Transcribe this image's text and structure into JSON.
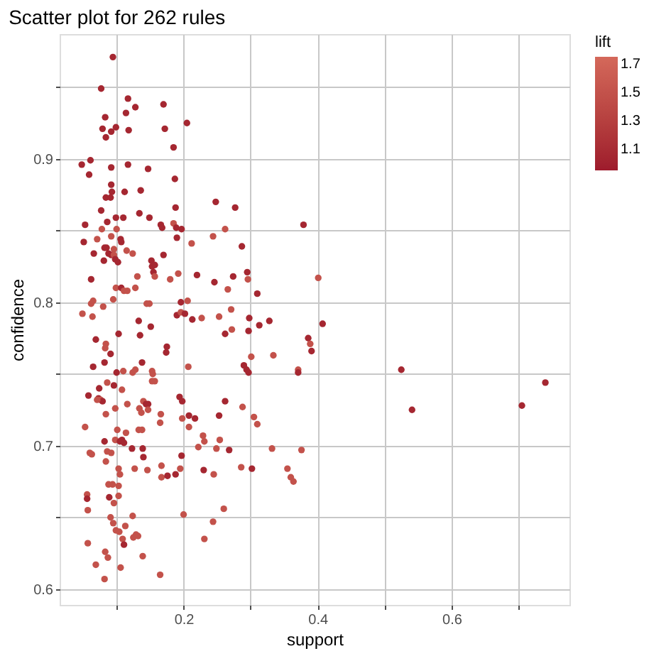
{
  "chart_data": {
    "type": "scatter",
    "title": "Scatter plot for 262 rules",
    "xlabel": "support",
    "ylabel": "confidence",
    "legend_title": "lift",
    "xlim": [
      0.015,
      0.776
    ],
    "ylim": [
      0.589,
      0.987
    ],
    "xticks": [
      {
        "value": 0.1,
        "label": null
      },
      0.2,
      {
        "value": 0.3,
        "label": null
      },
      0.4,
      {
        "value": 0.5,
        "label": null
      },
      0.6,
      {
        "value": 0.7,
        "label": null
      }
    ],
    "yticks": [
      0.6,
      {
        "value": 0.65,
        "label": null
      },
      0.7,
      {
        "value": 0.75,
        "label": null
      },
      0.8,
      {
        "value": 0.85,
        "label": null
      },
      0.9,
      {
        "value": 0.95,
        "label": null
      }
    ],
    "clim": [
      0.95,
      1.75
    ],
    "cticks": [
      1.1,
      1.3,
      1.5,
      1.7
    ],
    "grid": true,
    "marker": "circle",
    "x": [
      0.0945,
      0.077,
      0.117,
      0.128,
      0.114,
      0.083,
      0.079,
      0.092,
      0.099,
      0.084,
      0.118,
      0.17,
      0.172,
      0.205,
      0.185,
      0.048,
      0.061,
      0.059,
      0.092,
      0.117,
      0.147,
      0.187,
      0.092,
      0.093,
      0.112,
      0.084,
      0.091,
      0.136,
      0.077,
      0.134,
      0.188,
      0.248,
      0.277,
      0.086,
      0.099,
      0.11,
      0.149,
      0.053,
      0.078,
      0.1,
      0.166,
      0.168,
      0.185,
      0.189,
      0.197,
      0.379,
      0.071,
      0.092,
      0.106,
      0.107,
      0.19,
      0.212,
      0.244,
      0.262,
      0.287,
      0.051,
      0.082,
      0.085,
      0.096,
      0.066,
      0.088,
      0.115,
      0.124,
      0.092,
      0.096,
      0.081,
      0.098,
      0.102,
      0.152,
      0.17,
      0.153,
      0.157,
      0.155,
      0.131,
      0.157,
      0.18,
      0.192,
      0.22,
      0.062,
      0.246,
      0.274,
      0.295,
      0.296,
      0.31,
      0.401,
      0.266,
      0.099,
      0.107,
      0.111,
      0.116,
      0.128,
      0.095,
      0.062,
      0.065,
      0.145,
      0.149,
      0.196,
      0.206,
      0.08,
      0.049,
      0.064,
      0.19,
      0.196,
      0.202,
      0.227,
      0.213,
      0.253,
      0.271,
      0.298,
      0.313,
      0.328,
      0.133,
      0.151,
      0.135,
      0.103,
      0.272,
      0.262,
      0.297,
      0.386,
      0.069,
      0.084,
      0.083,
      0.091,
      0.082,
      0.065,
      0.1,
      0.138,
      0.175,
      0.174,
      0.207,
      0.11,
      0.124,
      0.128,
      0.153,
      0.154,
      0.157,
      0.153,
      0.086,
      0.096,
      0.074,
      0.108,
      0.058,
      0.073,
      0.076,
      0.079,
      0.071,
      0.14,
      0.144,
      0.147,
      0.194,
      0.198,
      0.116,
      0.134,
      0.137,
      0.147,
      0.098,
      0.084,
      0.166,
      0.208,
      0.217,
      0.198,
      0.262,
      0.253,
      0.288,
      0.29,
      0.294,
      0.297,
      0.301,
      0.334,
      0.305,
      0.31,
      0.165,
      0.208,
      0.053,
      0.101,
      0.133,
      0.138,
      0.114,
      0.229,
      0.231,
      0.254,
      0.098,
      0.082,
      0.105,
      0.108,
      0.111,
      0.139,
      0.14,
      0.197,
      0.123,
      0.222,
      0.249,
      0.268,
      0.332,
      0.376,
      0.06,
      0.063,
      0.086,
      0.092,
      0.084,
      0.167,
      0.195,
      0.103,
      0.105,
      0.127,
      0.146,
      0.286,
      0.302,
      0.355,
      0.23,
      0.245,
      0.188,
      0.167,
      0.176,
      0.36,
      0.364,
      0.088,
      0.094,
      0.103,
      0.103,
      0.056,
      0.056,
      0.089,
      0.096,
      0.057,
      0.124,
      0.2,
      0.244,
      0.26,
      0.091,
      0.095,
      0.113,
      0.099,
      0.104,
      0.125,
      0.129,
      0.132,
      0.109,
      0.111,
      0.231,
      0.057,
      0.083,
      0.087,
      0.139,
      0.069,
      0.106,
      0.165,
      0.082,
      0.4075,
      0.389,
      0.391,
      0.371,
      0.371,
      0.525,
      0.541,
      0.705,
      0.74
    ],
    "values": [
      0.971,
      0.949,
      0.942,
      0.936,
      0.932,
      0.929,
      0.921,
      0.919,
      0.922,
      0.915,
      0.92,
      0.938,
      0.921,
      0.925,
      0.908,
      0.896,
      0.899,
      0.889,
      0.894,
      0.896,
      0.893,
      0.886,
      0.882,
      0.877,
      0.877,
      0.873,
      0.873,
      0.878,
      0.864,
      0.862,
      0.866,
      0.87,
      0.866,
      0.856,
      0.859,
      0.859,
      0.859,
      0.854,
      0.851,
      0.851,
      0.854,
      0.852,
      0.855,
      0.852,
      0.851,
      0.854,
      0.844,
      0.846,
      0.844,
      0.842,
      0.845,
      0.841,
      0.846,
      0.851,
      0.839,
      0.842,
      0.838,
      0.838,
      0.837,
      0.834,
      0.834,
      0.836,
      0.834,
      0.833,
      0.833,
      0.829,
      0.83,
      0.828,
      0.829,
      0.833,
      0.825,
      0.826,
      0.821,
      0.818,
      0.818,
      0.816,
      0.82,
      0.819,
      0.816,
      0.814,
      0.818,
      0.821,
      0.816,
      0.806,
      0.817,
      0.809,
      0.81,
      0.81,
      0.808,
      0.808,
      0.81,
      0.802,
      0.799,
      0.801,
      0.799,
      0.799,
      0.8,
      0.801,
      0.797,
      0.792,
      0.79,
      0.791,
      0.793,
      0.792,
      0.789,
      0.788,
      0.79,
      0.795,
      0.789,
      0.784,
      0.787,
      0.787,
      0.783,
      0.777,
      0.778,
      0.781,
      0.778,
      0.78,
      0.775,
      0.774,
      0.771,
      0.768,
      0.764,
      0.758,
      0.755,
      0.751,
      0.758,
      0.769,
      0.765,
      0.755,
      0.752,
      0.751,
      0.753,
      0.752,
      0.75,
      0.745,
      0.745,
      0.744,
      0.742,
      0.74,
      0.739,
      0.735,
      0.733,
      0.732,
      0.731,
      0.732,
      0.731,
      0.729,
      0.729,
      0.734,
      0.731,
      0.729,
      0.726,
      0.723,
      0.725,
      0.726,
      0.722,
      0.722,
      0.721,
      0.719,
      0.719,
      0.731,
      0.721,
      0.727,
      0.756,
      0.753,
      0.751,
      0.762,
      0.763,
      0.72,
      0.715,
      0.716,
      0.713,
      0.713,
      0.711,
      0.711,
      0.711,
      0.709,
      0.707,
      0.703,
      0.704,
      0.704,
      0.703,
      0.703,
      0.704,
      0.702,
      0.698,
      0.692,
      0.693,
      0.698,
      0.699,
      0.698,
      0.697,
      0.698,
      0.697,
      0.695,
      0.694,
      0.696,
      0.695,
      0.689,
      0.686,
      0.684,
      0.684,
      0.68,
      0.684,
      0.683,
      0.685,
      0.684,
      0.684,
      0.683,
      0.68,
      0.68,
      0.678,
      0.679,
      0.678,
      0.675,
      0.673,
      0.673,
      0.672,
      0.665,
      0.666,
      0.663,
      0.664,
      0.66,
      0.655,
      0.651,
      0.652,
      0.647,
      0.656,
      0.65,
      0.646,
      0.644,
      0.641,
      0.64,
      0.636,
      0.638,
      0.637,
      0.635,
      0.631,
      0.635,
      0.632,
      0.626,
      0.622,
      0.623,
      0.617,
      0.615,
      0.61,
      0.607,
      0.785,
      0.771,
      0.766,
      0.753,
      0.751,
      0.753,
      0.725,
      0.728,
      0.744
    ],
    "cvalues": [
      1.05,
      1.05,
      1.05,
      1.05,
      1.05,
      1.05,
      1.05,
      1.05,
      1.05,
      1.05,
      1.05,
      1.05,
      1.05,
      1.05,
      1.05,
      1.05,
      1.05,
      1.05,
      1.05,
      1.05,
      1.05,
      1.05,
      1.05,
      1.05,
      1.05,
      1.05,
      1.05,
      1.05,
      1.05,
      1.05,
      1.05,
      1.05,
      1.05,
      1.05,
      1.05,
      1.05,
      1.05,
      1.05,
      1.5,
      1.5,
      1.05,
      1.05,
      1.5,
      1.05,
      1.05,
      1.05,
      1.5,
      1.5,
      1.05,
      1.05,
      1.05,
      1.5,
      1.5,
      1.5,
      1.05,
      1.05,
      1.05,
      1.05,
      1.5,
      1.05,
      1.05,
      1.5,
      1.5,
      1.05,
      1.5,
      1.05,
      1.05,
      1.05,
      1.05,
      1.05,
      1.05,
      1.05,
      1.05,
      1.5,
      1.5,
      1.5,
      1.5,
      1.05,
      1.05,
      1.05,
      1.05,
      1.05,
      1.5,
      1.05,
      1.5,
      1.5,
      1.5,
      1.05,
      1.5,
      1.5,
      1.5,
      1.5,
      1.5,
      1.5,
      1.5,
      1.5,
      1.05,
      1.5,
      1.5,
      1.5,
      1.5,
      1.05,
      1.5,
      1.05,
      1.5,
      1.05,
      1.5,
      1.5,
      1.05,
      1.05,
      1.05,
      1.05,
      1.05,
      1.05,
      1.05,
      1.5,
      1.05,
      1.05,
      1.05,
      1.05,
      1.5,
      1.5,
      1.05,
      1.05,
      1.05,
      1.05,
      1.05,
      1.05,
      1.05,
      1.5,
      1.5,
      1.5,
      1.5,
      1.5,
      1.5,
      1.5,
      1.5,
      1.5,
      1.05,
      1.05,
      1.5,
      1.05,
      1.05,
      1.5,
      1.05,
      1.5,
      1.5,
      1.05,
      1.05,
      1.05,
      1.05,
      1.5,
      1.5,
      1.5,
      1.5,
      1.5,
      1.5,
      1.5,
      1.05,
      1.05,
      1.5,
      1.05,
      1.05,
      1.5,
      1.05,
      1.05,
      1.05,
      1.5,
      1.5,
      1.5,
      1.5,
      1.5,
      1.5,
      1.5,
      1.5,
      1.5,
      1.5,
      1.5,
      1.5,
      1.5,
      1.5,
      1.5,
      1.05,
      1.05,
      1.05,
      1.05,
      1.05,
      1.05,
      1.05,
      1.05,
      1.5,
      1.5,
      1.05,
      1.5,
      1.5,
      1.5,
      1.5,
      1.5,
      1.5,
      1.5,
      1.5,
      1.5,
      1.5,
      1.5,
      1.5,
      1.5,
      1.5,
      1.05,
      1.5,
      1.05,
      1.5,
      1.05,
      1.5,
      1.05,
      1.5,
      1.5,
      1.5,
      1.5,
      1.5,
      1.5,
      1.5,
      1.05,
      1.05,
      1.5,
      1.5,
      1.5,
      1.5,
      1.5,
      1.5,
      1.5,
      1.5,
      1.5,
      1.5,
      1.5,
      1.5,
      1.5,
      1.5,
      1.5,
      1.05,
      1.5,
      1.5,
      1.5,
      1.5,
      1.5,
      1.5,
      1.5,
      1.5,
      1.5,
      1.05,
      1.5,
      1.05,
      1.5,
      1.05,
      1.05,
      1.05,
      1.05,
      1.05
    ]
  }
}
